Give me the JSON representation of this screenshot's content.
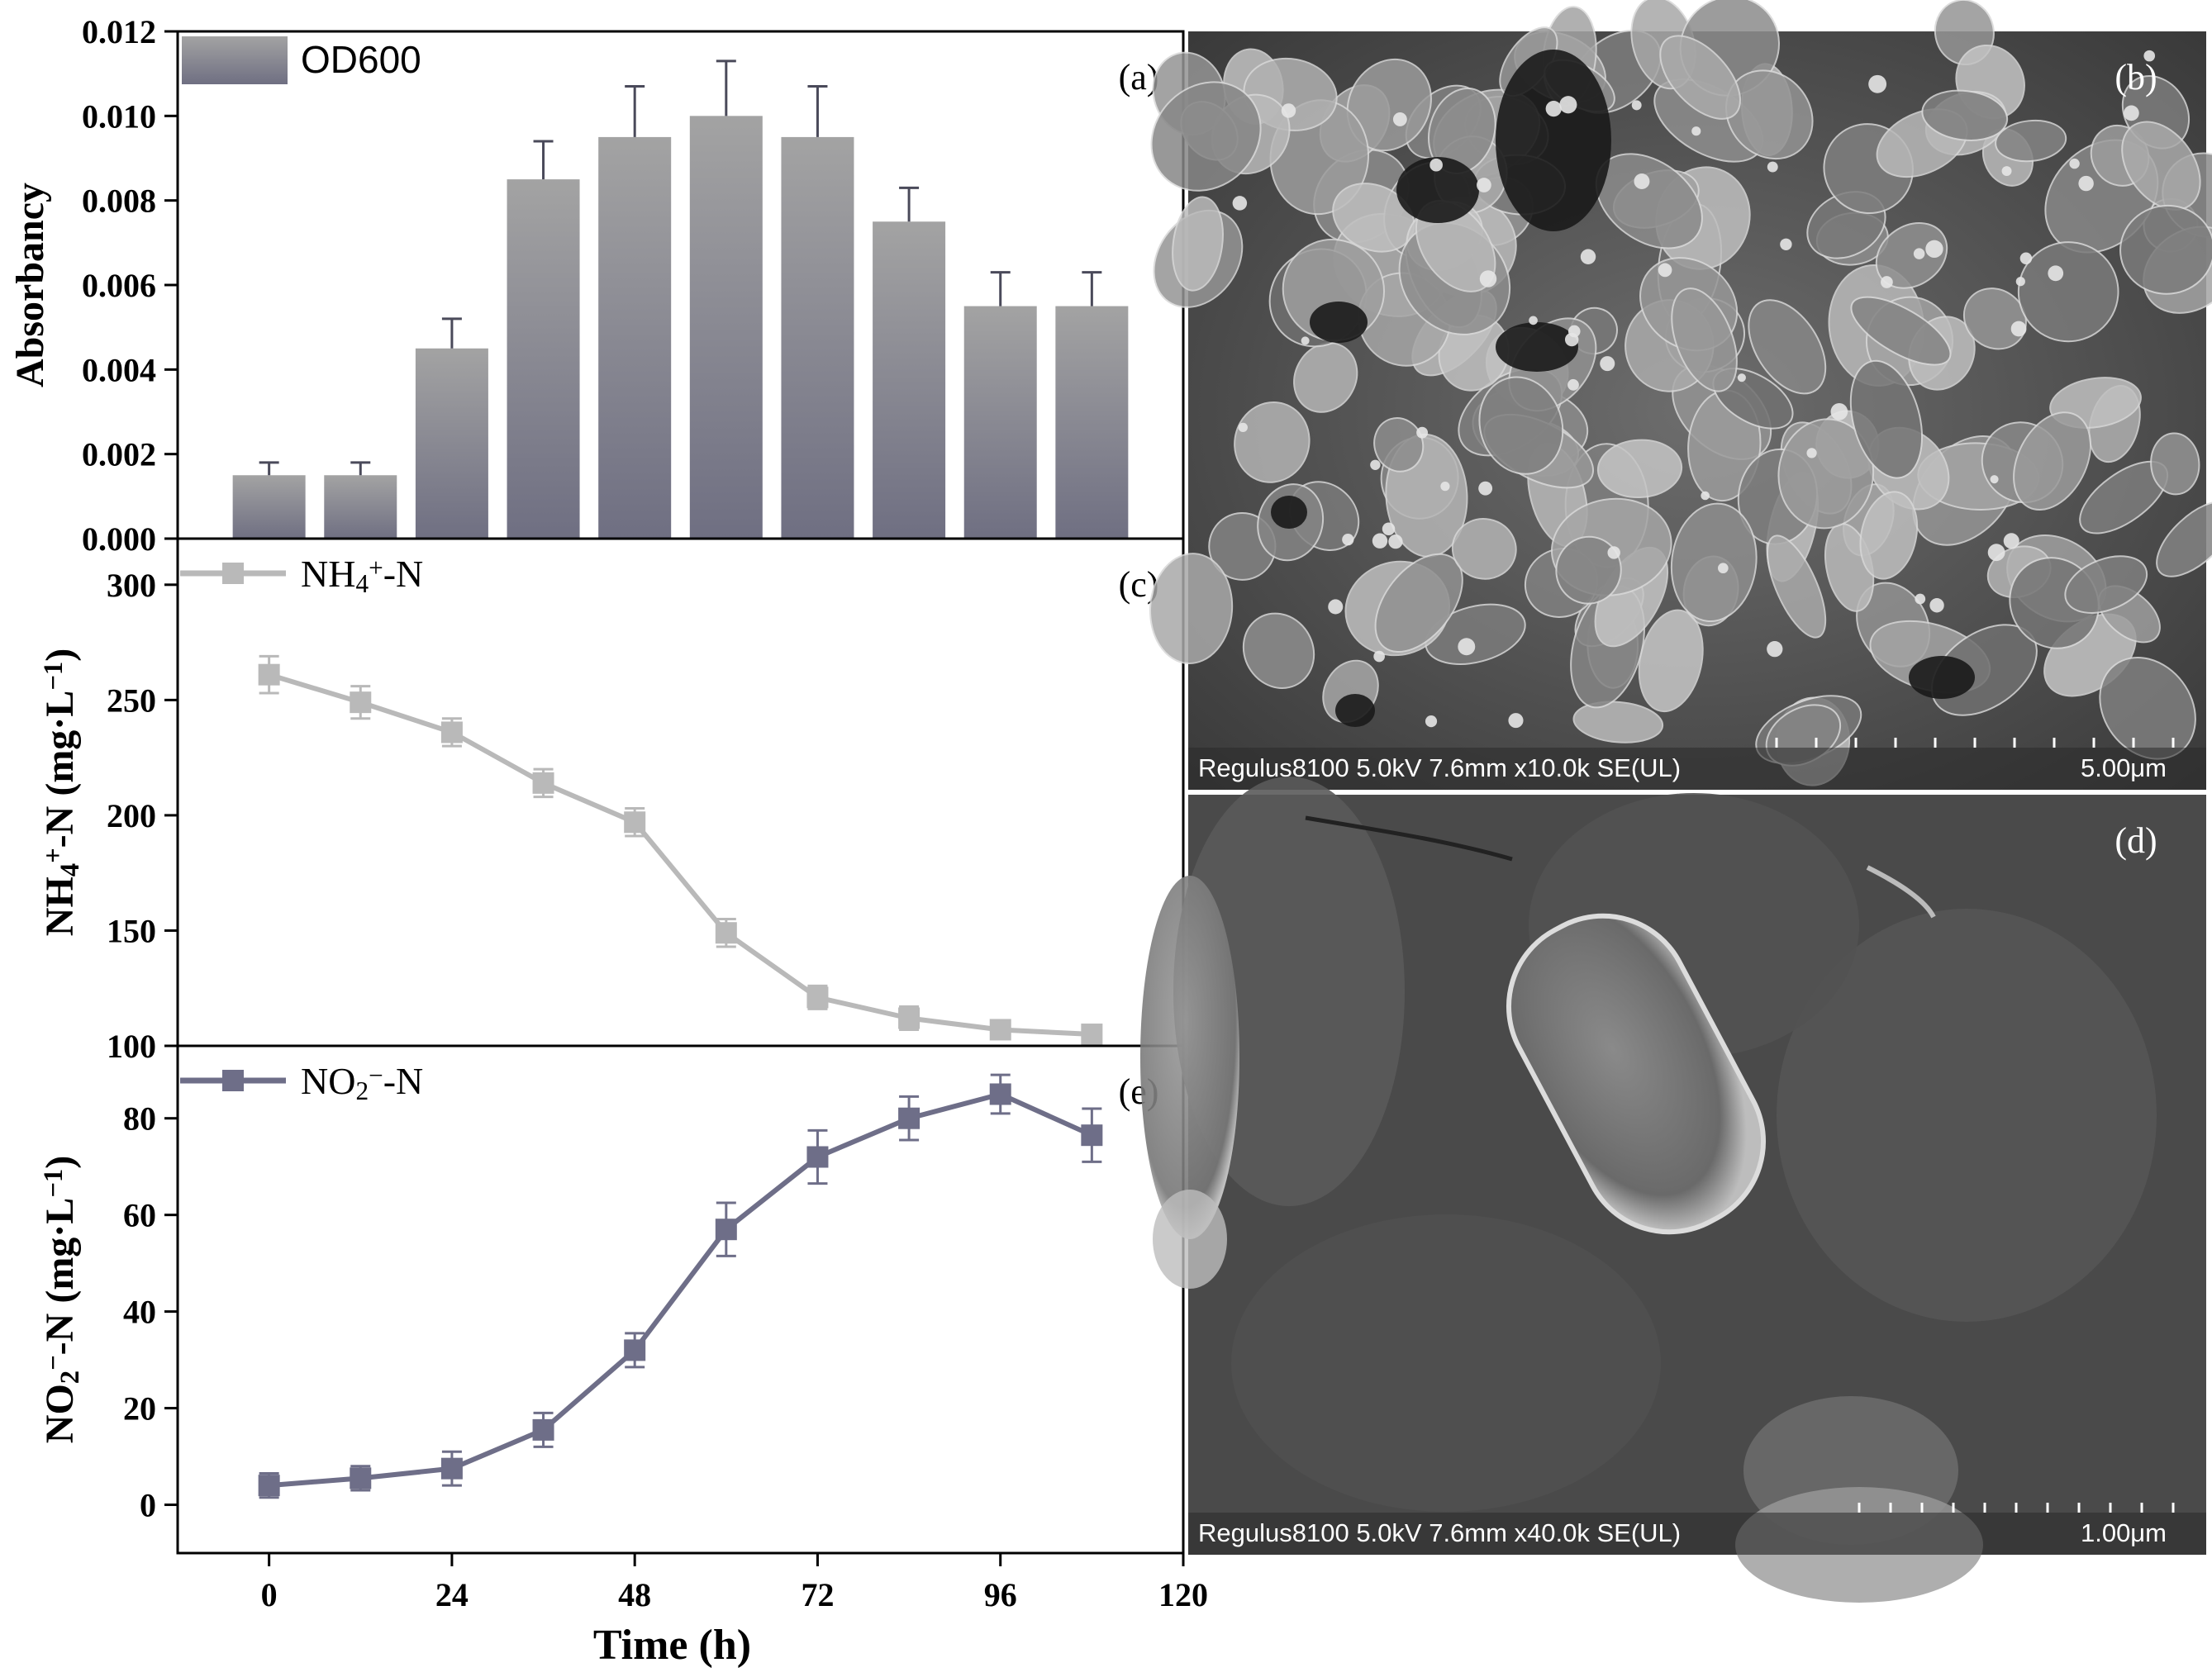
{
  "chart_data": [
    {
      "panel": "(a)",
      "type": "bar",
      "legend": "OD600",
      "ylabel": "Absorbancy",
      "ylim": [
        0,
        0.012
      ],
      "yticks": [
        "0.000",
        "0.002",
        "0.004",
        "0.006",
        "0.008",
        "0.010",
        "0.012"
      ],
      "x": [
        0,
        12,
        24,
        36,
        48,
        60,
        72,
        84,
        96,
        108
      ],
      "values": [
        0.0015,
        0.0015,
        0.0045,
        0.0085,
        0.0095,
        0.01,
        0.0095,
        0.0075,
        0.0055,
        0.0055
      ],
      "errors": [
        0.0003,
        0.0003,
        0.0007,
        0.0009,
        0.0012,
        0.0013,
        0.0012,
        0.0008,
        0.0008,
        0.0008
      ],
      "color": "#8a8a93"
    },
    {
      "panel": "(c)",
      "type": "line",
      "legend": "NH₄⁺-N",
      "ylabel": "NH₄⁺-N (mg·L⁻¹)",
      "ylim": [
        100,
        320
      ],
      "yticks": [
        "100",
        "150",
        "200",
        "250",
        "300"
      ],
      "x": [
        0,
        12,
        24,
        36,
        48,
        60,
        72,
        84,
        96,
        108
      ],
      "values": [
        261,
        249,
        236,
        214,
        197,
        149,
        121,
        112,
        107,
        105
      ],
      "errors": [
        8,
        7,
        6,
        6,
        6,
        6,
        5,
        5,
        4,
        4
      ],
      "color": "#b9b9b9"
    },
    {
      "panel": "(e)",
      "type": "line",
      "legend": "NO₂⁻-N",
      "ylabel": "NO₂⁻-N (mg·L⁻¹)",
      "ylim": [
        -10,
        95
      ],
      "yticks": [
        "0",
        "20",
        "40",
        "60",
        "80"
      ],
      "xlabel": "Time (h)",
      "xlim": [
        -12,
        120
      ],
      "xticks": [
        "0",
        "24",
        "48",
        "72",
        "96",
        "120"
      ],
      "x": [
        0,
        12,
        24,
        36,
        48,
        60,
        72,
        84,
        96,
        108
      ],
      "values": [
        4,
        5.5,
        7.5,
        15.5,
        32,
        57,
        72,
        80,
        85,
        76.5
      ],
      "errors": [
        2.5,
        2.5,
        3.5,
        3.5,
        3.5,
        5.5,
        5.5,
        4.5,
        4,
        5.5
      ],
      "color": "#6e6e88"
    }
  ],
  "images": [
    {
      "panel": "(b)",
      "info": "Regulus8100 5.0kV 7.6mm x10.0k SE(UL)",
      "scale": "5.00μm"
    },
    {
      "panel": "(d)",
      "info": "Regulus8100 5.0kV 7.6mm x40.0k SE(UL)",
      "scale": "1.00μm"
    }
  ]
}
